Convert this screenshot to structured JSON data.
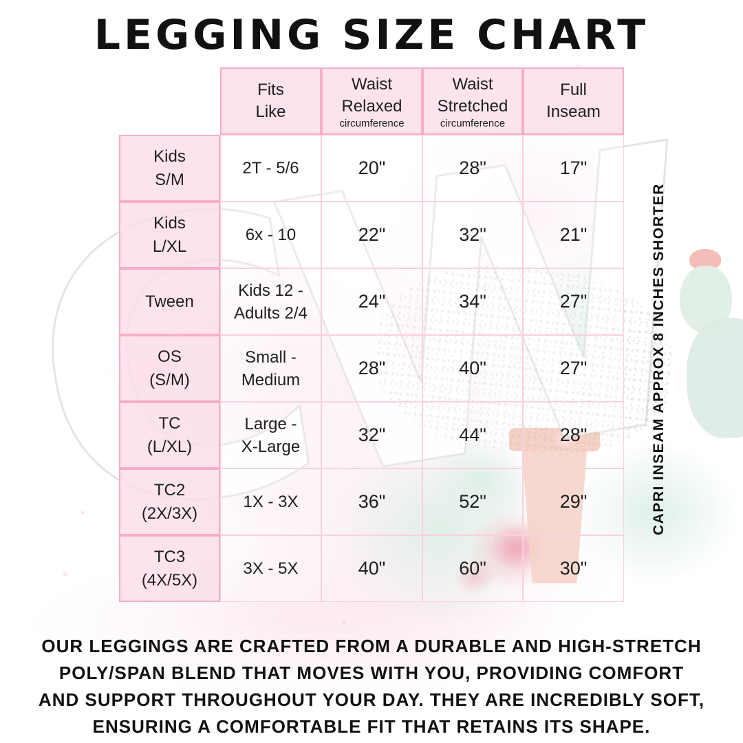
{
  "page": {
    "title": "LEGGING SIZE CHART",
    "side_note": "CAPRI INSEAM APPROX 8 INCHES SHORTER",
    "watermark_text": "CW",
    "footer_lines": [
      "OUR LEGGINGS ARE CRAFTED FROM A DURABLE AND HIGH-STRETCH",
      "POLY/SPAN BLEND THAT MOVES WITH YOU, PROVIDING COMFORT",
      "AND SUPPORT THROUGHOUT YOUR DAY. THEY ARE INCREDIBLY SOFT,",
      "ENSURING A COMFORTABLE FIT THAT RETAINS ITS SHAPE."
    ]
  },
  "colors": {
    "table-border-strong": "#f6aec7",
    "table-border-light": "#f9d0df",
    "cell-pink": "#fbe0ea",
    "text-ink": "#1f1f1f",
    "wash-pink": "#fadbe7",
    "wash-mint": "#d6ebe0",
    "accent-red": "#e87a8e",
    "pot-salmon": "#f2c1b2"
  },
  "table": {
    "headers": [
      {
        "t1": "Fits",
        "t2": "Like",
        "sub": ""
      },
      {
        "t1": "Waist",
        "t2": "Relaxed",
        "sub": "circumference"
      },
      {
        "t1": "Waist",
        "t2": "Stretched",
        "sub": "circumference"
      },
      {
        "t1": "Full",
        "t2": "Inseam",
        "sub": ""
      }
    ],
    "rows": [
      {
        "label1": "Kids",
        "label2": "S/M",
        "fits1": "2T - 5/6",
        "fits2": "",
        "relaxed": "20\"",
        "stretched": "28\"",
        "inseam": "17\""
      },
      {
        "label1": "Kids",
        "label2": "L/XL",
        "fits1": "6x - 10",
        "fits2": "",
        "relaxed": "22\"",
        "stretched": "32\"",
        "inseam": "21\""
      },
      {
        "label1": "Tween",
        "label2": "",
        "fits1": "Kids 12 -",
        "fits2": "Adults 2/4",
        "relaxed": "24\"",
        "stretched": "34\"",
        "inseam": "27\""
      },
      {
        "label1": "OS",
        "label2": "(S/M)",
        "fits1": "Small -",
        "fits2": "Medium",
        "relaxed": "28\"",
        "stretched": "40\"",
        "inseam": "27\""
      },
      {
        "label1": "TC",
        "label2": "(L/XL)",
        "fits1": "Large -",
        "fits2": "X-Large",
        "relaxed": "32\"",
        "stretched": "44\"",
        "inseam": "28\""
      },
      {
        "label1": "TC2",
        "label2": "(2X/3X)",
        "fits1": "1X - 3X",
        "fits2": "",
        "relaxed": "36\"",
        "stretched": "52\"",
        "inseam": "29\""
      },
      {
        "label1": "TC3",
        "label2": "(4X/5X)",
        "fits1": "3X - 5X",
        "fits2": "",
        "relaxed": "40\"",
        "stretched": "60\"",
        "inseam": "30\""
      }
    ]
  },
  "chart_data": {
    "type": "table",
    "title": "LEGGING SIZE CHART",
    "columns": [
      "",
      "Fits Like",
      "Waist Relaxed (circumference)",
      "Waist Stretched (circumference)",
      "Full Inseam"
    ],
    "rows": [
      [
        "Kids S/M",
        "2T - 5/6",
        "20\"",
        "28\"",
        "17\""
      ],
      [
        "Kids L/XL",
        "6x - 10",
        "22\"",
        "32\"",
        "21\""
      ],
      [
        "Tween",
        "Kids 12 - Adults 2/4",
        "24\"",
        "34\"",
        "27\""
      ],
      [
        "OS (S/M)",
        "Small - Medium",
        "28\"",
        "40\"",
        "27\""
      ],
      [
        "TC (L/XL)",
        "Large - X-Large",
        "32\"",
        "44\"",
        "28\""
      ],
      [
        "TC2 (2X/3X)",
        "1X - 3X",
        "36\"",
        "52\"",
        "29\""
      ],
      [
        "TC3 (4X/5X)",
        "3X - 5X",
        "40\"",
        "60\"",
        "30\""
      ]
    ],
    "notes": [
      "CAPRI INSEAM APPROX 8 INCHES SHORTER"
    ]
  }
}
